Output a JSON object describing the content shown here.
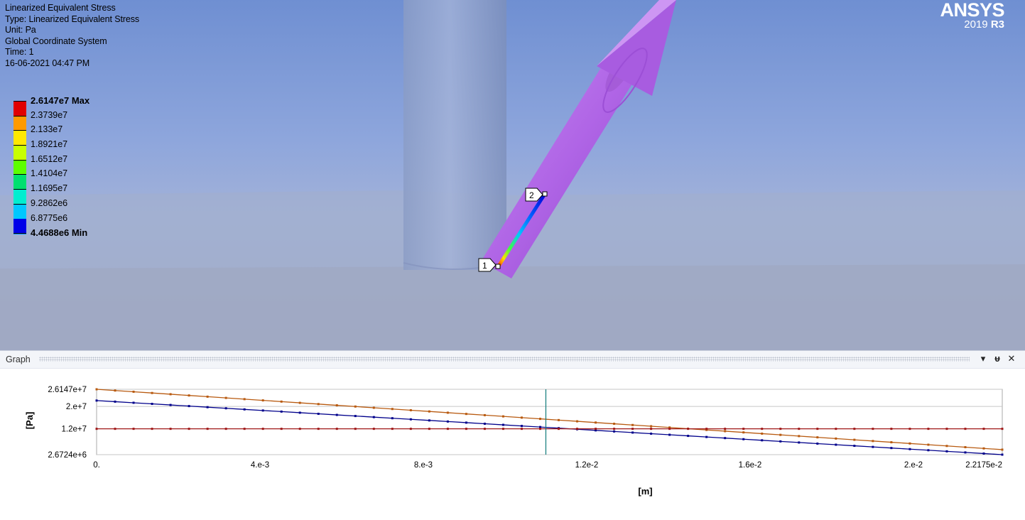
{
  "result_info": {
    "title": "Linearized Equivalent Stress",
    "type": "Type: Linearized Equivalent Stress",
    "unit": "Unit: Pa",
    "coordinate_system": "Global Coordinate System",
    "time": "Time: 1",
    "timestamp": "16-06-2021 04:47 PM"
  },
  "legend": [
    {
      "label": "2.6147e7 Max",
      "color": "#e00000",
      "strong": true
    },
    {
      "label": "2.3739e7",
      "color": "#ff9a00"
    },
    {
      "label": "2.133e7",
      "color": "#ffe800"
    },
    {
      "label": "1.8921e7",
      "color": "#c8ff00"
    },
    {
      "label": "1.6512e7",
      "color": "#5cff00"
    },
    {
      "label": "1.4104e7",
      "color": "#00e070"
    },
    {
      "label": "1.1695e7",
      "color": "#00eed0"
    },
    {
      "label": "9.2862e6",
      "color": "#00c8ff"
    },
    {
      "label": "6.8775e6",
      "color": "#0090ff"
    },
    {
      "label": "4.4688e6 Min",
      "color": "#0000e8",
      "strong": true
    }
  ],
  "brand": {
    "name": "ANSYS",
    "version": "2019",
    "release": "R3"
  },
  "probe_labels": {
    "start": "1",
    "end": "2"
  },
  "graph_panel": {
    "title": "Graph",
    "dropdown_icon": "triangle-down",
    "pin_icon": "pin",
    "close_icon": "close-x",
    "dropdown_glyph": "▾",
    "pin_glyph": "ᵾ",
    "close_glyph": "✕"
  },
  "chart_data": {
    "type": "line",
    "xlabel": "[m]",
    "ylabel": "[Pa]",
    "xlim": [
      0,
      0.022175
    ],
    "ylim": [
      2672400,
      26147000
    ],
    "x_ticks": [
      "0.",
      "4.e-3",
      "8.e-3",
      "1.2e-2",
      "1.6e-2",
      "2.e-2",
      "2.2175e-2"
    ],
    "x_tick_values": [
      0,
      0.004,
      0.008,
      0.012,
      0.016,
      0.02,
      0.022175
    ],
    "y_ticks": [
      "2.6147e+7",
      "2.e+7",
      "1.2e+7",
      "2.6724e+6"
    ],
    "y_tick_values": [
      26147000,
      20000000,
      12000000,
      2672400
    ],
    "cursor_x": 0.011,
    "series": [
      {
        "color": "#b85a10",
        "start": 26147000,
        "end": 4468800,
        "points": 50
      },
      {
        "color": "#00008b",
        "start": 22100000,
        "end": 2672400,
        "points": 50
      },
      {
        "color": "#a01818",
        "start": 11950000,
        "end": 11950000,
        "points": 50
      }
    ]
  },
  "colors": {
    "graph_grid": "#c6c6c6",
    "graph_frame": "#a8a8a8",
    "cursor": "#0f7a7a",
    "pipe_body": "#b565e8",
    "pipe_dark": "#8b3fc6"
  }
}
